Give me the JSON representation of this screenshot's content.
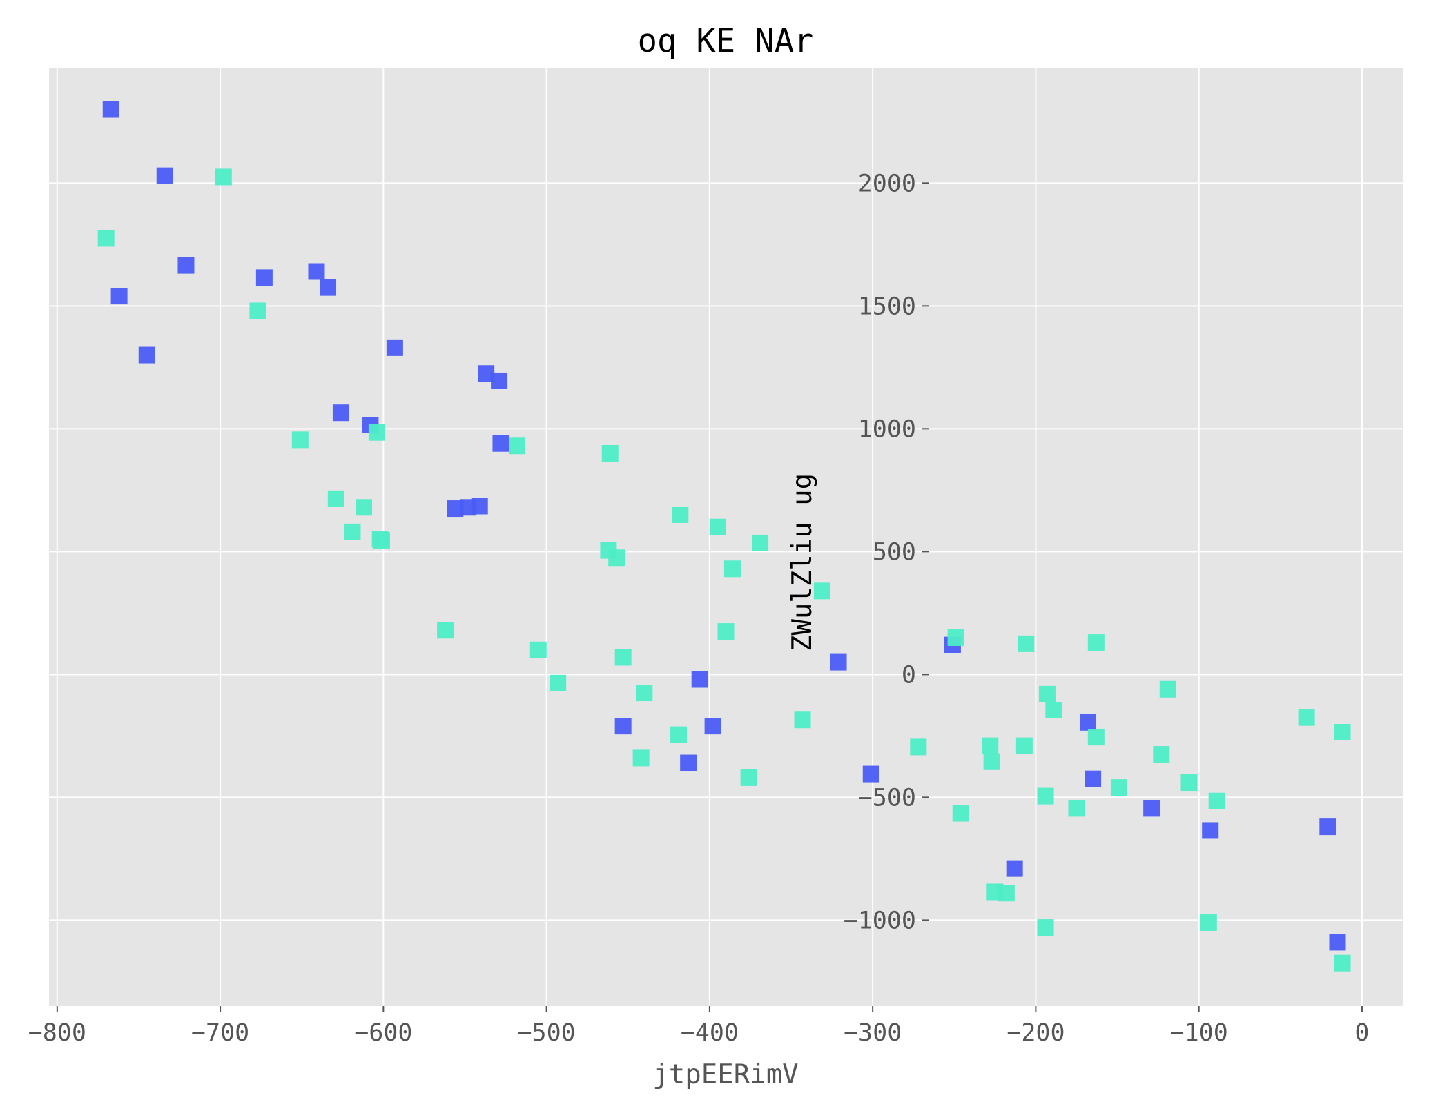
{
  "chart_data": {
    "type": "scatter",
    "title": "oq KE NAr",
    "xlabel": "jtpEERimV",
    "ylabel": "ZWulZliu ug",
    "xlim": [
      -805,
      25
    ],
    "ylim": [
      -1350,
      2470
    ],
    "xticks": [
      -800,
      -700,
      -600,
      -500,
      -400,
      -300,
      -200,
      -100,
      0
    ],
    "xtick_labels": [
      "−800",
      "−700",
      "−600",
      "−500",
      "−400",
      "−300",
      "−200",
      "−100",
      "0"
    ],
    "yticks": [
      -1000,
      -500,
      0,
      500,
      1000,
      1500,
      2000
    ],
    "ytick_labels": [
      "−1000",
      "−500",
      "0",
      "500",
      "1000",
      "1500",
      "2000"
    ],
    "grid": true,
    "background": "#e5e5e5",
    "marker": "square",
    "series": [
      {
        "color": "#4a5cf5",
        "points": [
          [
            -767,
            2300
          ],
          [
            -734,
            2030
          ],
          [
            -762,
            1540
          ],
          [
            -721,
            1665
          ],
          [
            -673,
            1615
          ],
          [
            -745,
            1300
          ],
          [
            -641,
            1640
          ],
          [
            -634,
            1575
          ],
          [
            -593,
            1330
          ],
          [
            -537,
            1225
          ],
          [
            -529,
            1195
          ],
          [
            -626,
            1065
          ],
          [
            -608,
            1015
          ],
          [
            -528,
            940
          ],
          [
            -541,
            685
          ],
          [
            -548,
            680
          ],
          [
            -556,
            675
          ],
          [
            -453,
            -210
          ],
          [
            -406,
            -20
          ],
          [
            -398,
            -210
          ],
          [
            -413,
            -360
          ],
          [
            -321,
            50
          ],
          [
            -301,
            -405
          ],
          [
            -251,
            120
          ],
          [
            -168,
            -195
          ],
          [
            -165,
            -425
          ],
          [
            -213,
            -790
          ],
          [
            -129,
            -545
          ],
          [
            -93,
            -635
          ],
          [
            -21,
            -620
          ],
          [
            -15,
            -1090
          ]
        ]
      },
      {
        "color": "#4eedc7",
        "points": [
          [
            -698,
            2025
          ],
          [
            -770,
            1775
          ],
          [
            -677,
            1480
          ],
          [
            -651,
            955
          ],
          [
            -604,
            985
          ],
          [
            -518,
            930
          ],
          [
            -461,
            900
          ],
          [
            -629,
            715
          ],
          [
            -612,
            680
          ],
          [
            -619,
            580
          ],
          [
            -602,
            550
          ],
          [
            -601,
            545
          ],
          [
            -462,
            505
          ],
          [
            -457,
            475
          ],
          [
            -418,
            650
          ],
          [
            -395,
            600
          ],
          [
            -369,
            535
          ],
          [
            -386,
            430
          ],
          [
            -562,
            180
          ],
          [
            -505,
            100
          ],
          [
            -493,
            -35
          ],
          [
            -453,
            70
          ],
          [
            -440,
            -75
          ],
          [
            -390,
            175
          ],
          [
            -331,
            340
          ],
          [
            -442,
            -340
          ],
          [
            -419,
            -245
          ],
          [
            -376,
            -420
          ],
          [
            -343,
            -185
          ],
          [
            -272,
            -295
          ],
          [
            -249,
            150
          ],
          [
            -246,
            -565
          ],
          [
            -228,
            -290
          ],
          [
            -227,
            -355
          ],
          [
            -207,
            -290
          ],
          [
            -206,
            125
          ],
          [
            -193,
            -80
          ],
          [
            -189,
            -145
          ],
          [
            -194,
            -495
          ],
          [
            -194,
            -1030
          ],
          [
            -218,
            -890
          ],
          [
            -225,
            -885
          ],
          [
            -163,
            130
          ],
          [
            -163,
            -255
          ],
          [
            -175,
            -545
          ],
          [
            -149,
            -460
          ],
          [
            -119,
            -60
          ],
          [
            -123,
            -325
          ],
          [
            -106,
            -440
          ],
          [
            -89,
            -515
          ],
          [
            -94,
            -1010
          ],
          [
            -34,
            -175
          ],
          [
            -12,
            -235
          ],
          [
            -12,
            -1175
          ]
        ]
      }
    ]
  }
}
